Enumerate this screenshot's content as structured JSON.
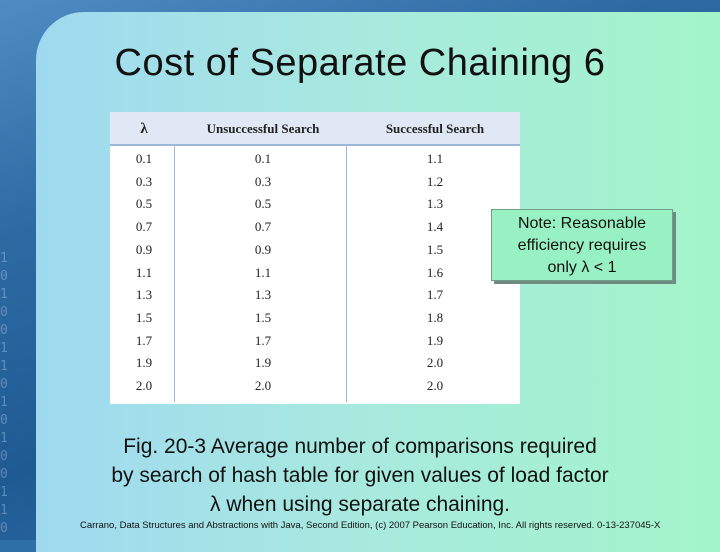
{
  "slide": {
    "title": "Cost of Separate Chaining 6",
    "caption_lines": [
      "Fig. 20-3 Average number of comparisons required",
      "by search of hash table for given values of load factor",
      "λ when using separate chaining."
    ],
    "footer": "Carrano, Data Structures and Abstractions with Java, Second Edition, (c) 2007 Pearson Education, Inc. All rights reserved. 0-13-237045-X"
  },
  "note": {
    "lines": [
      "Note: Reasonable",
      "efficiency requires",
      "only λ < 1"
    ]
  },
  "table": {
    "headers": [
      "λ",
      "Unsuccessful Search",
      "Successful Search"
    ],
    "rows": [
      [
        "0.1",
        "0.1",
        "1.1"
      ],
      [
        "0.3",
        "0.3",
        "1.2"
      ],
      [
        "0.5",
        "0.5",
        "1.3"
      ],
      [
        "0.7",
        "0.7",
        "1.4"
      ],
      [
        "0.9",
        "0.9",
        "1.5"
      ],
      [
        "1.1",
        "1.1",
        "1.6"
      ],
      [
        "1.3",
        "1.3",
        "1.7"
      ],
      [
        "1.5",
        "1.5",
        "1.8"
      ],
      [
        "1.7",
        "1.7",
        "1.9"
      ],
      [
        "1.9",
        "1.9",
        "2.0"
      ],
      [
        "2.0",
        "2.0",
        "2.0"
      ]
    ]
  }
}
